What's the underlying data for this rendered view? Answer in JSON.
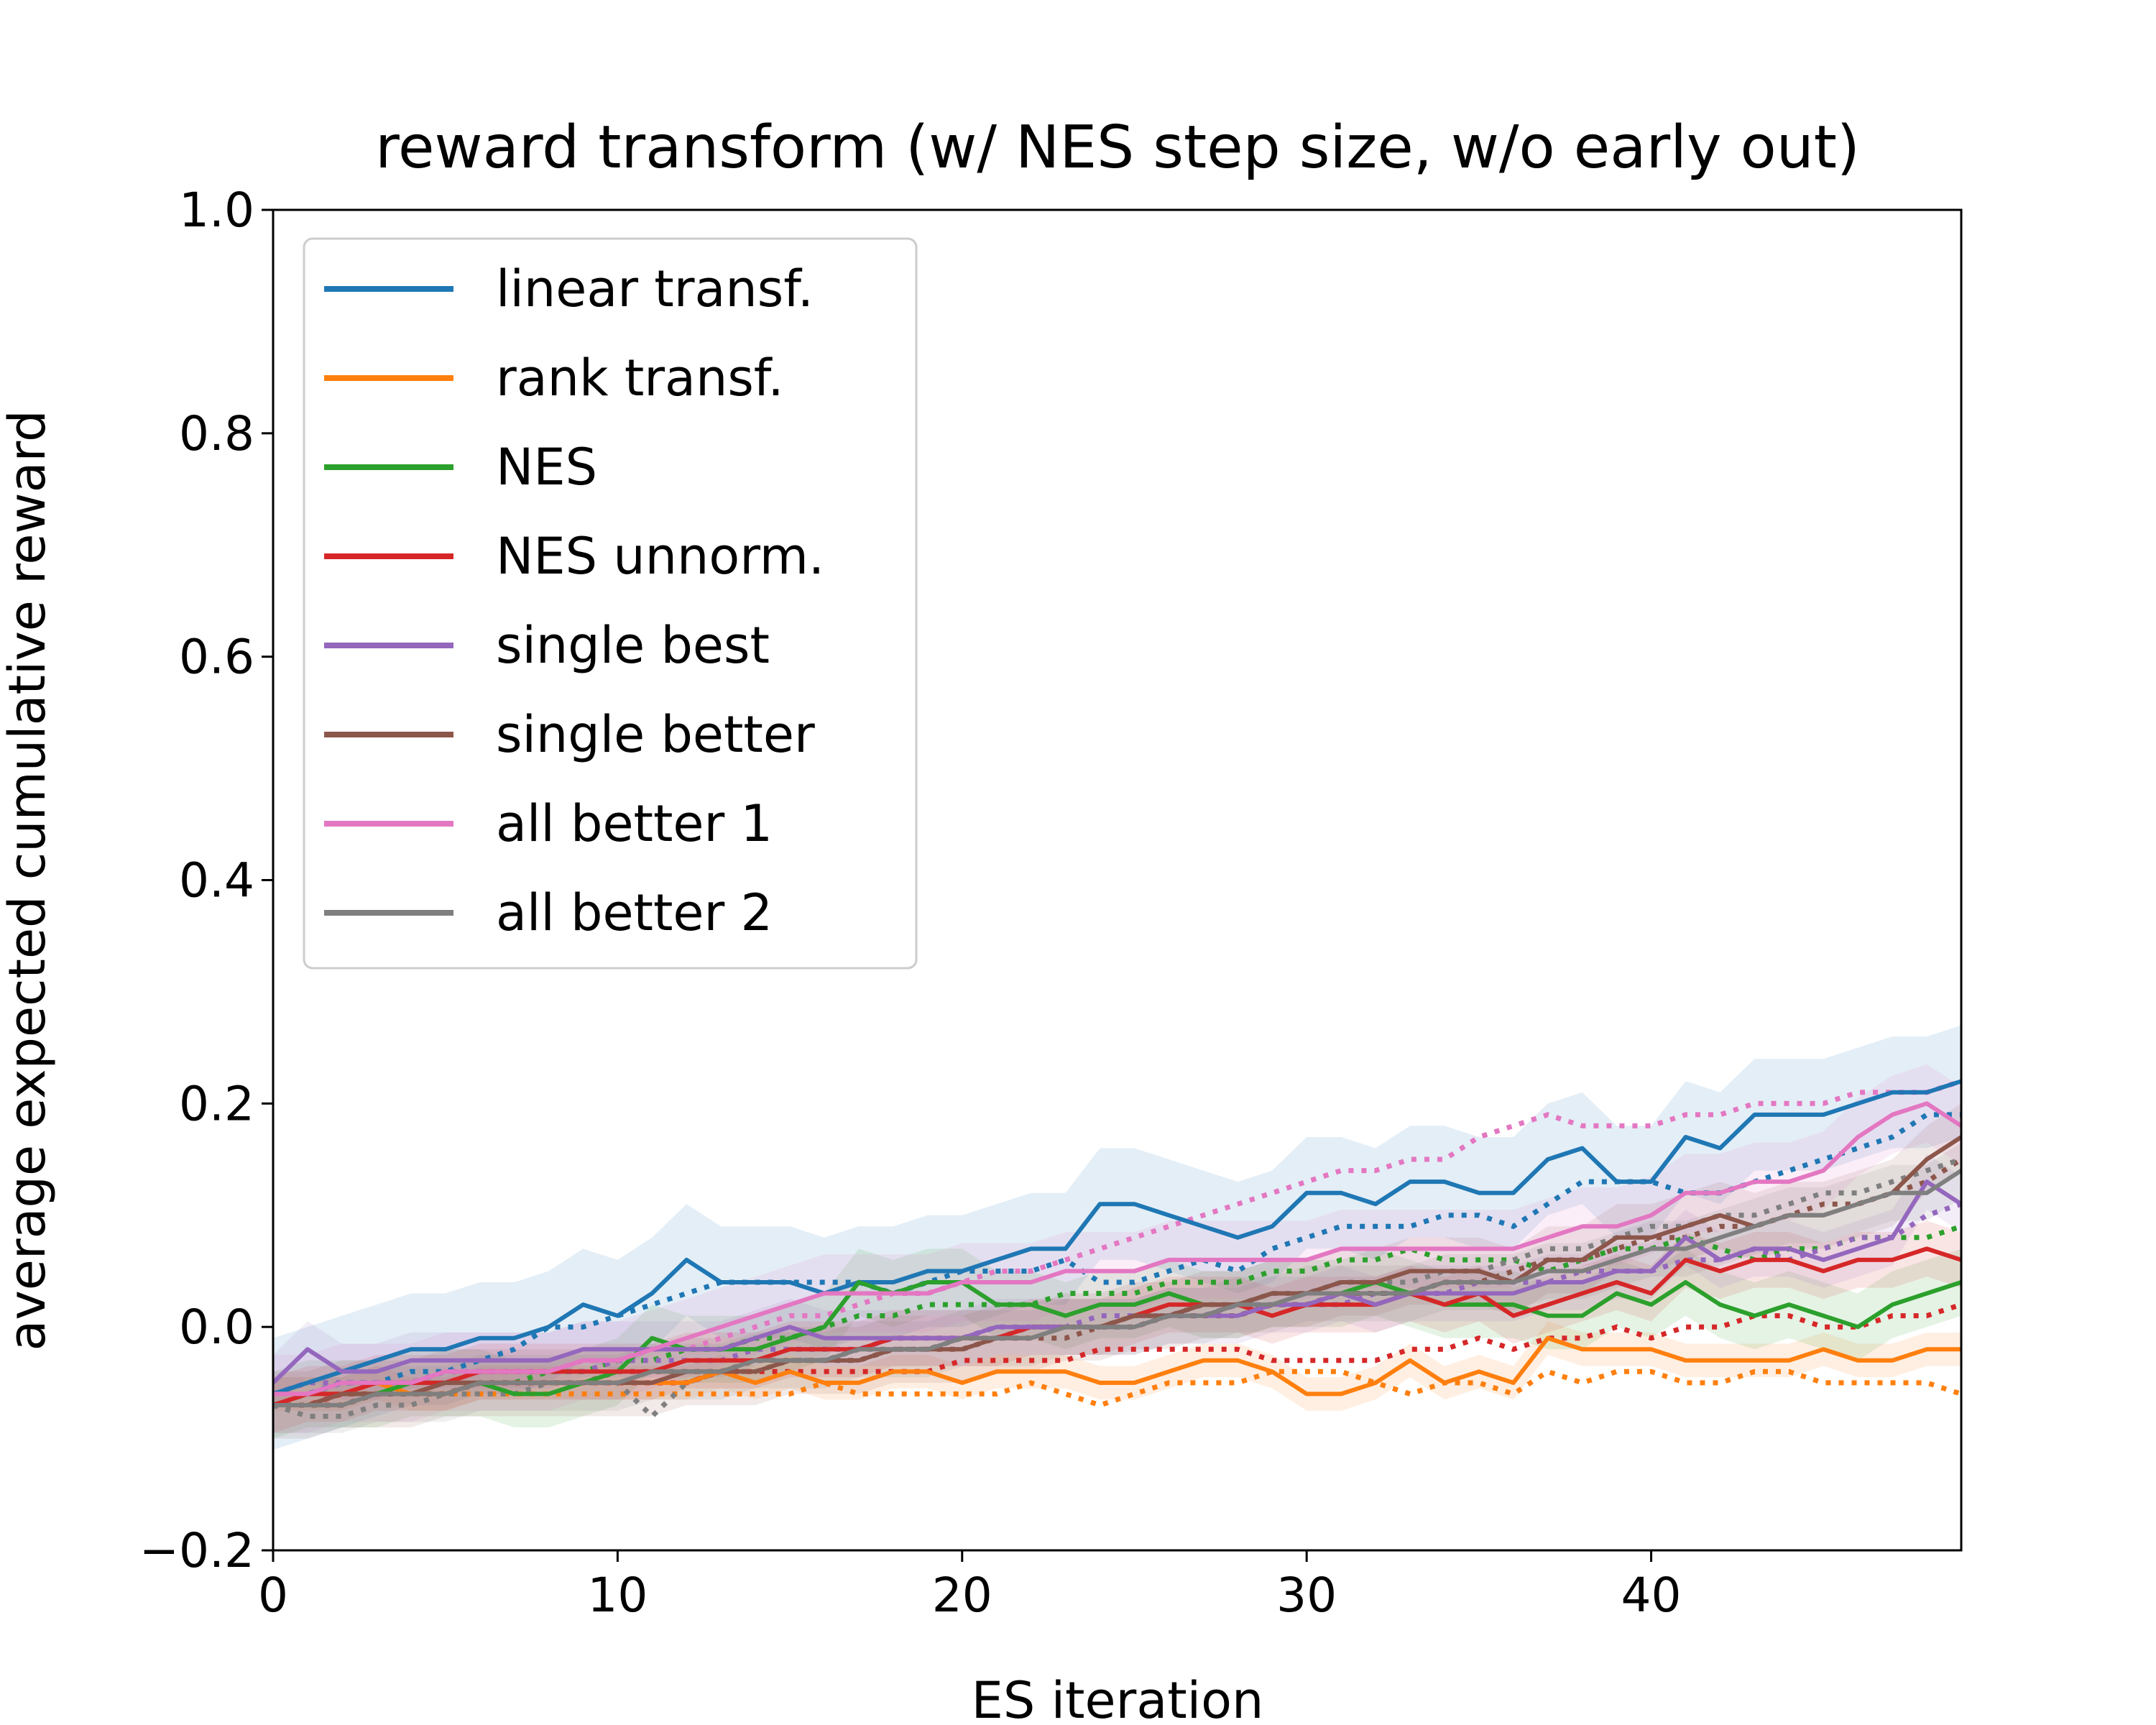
{
  "chart_data": {
    "type": "line",
    "title": "reward transform (w/ NES step size, w/o early out)",
    "xlabel": "ES iteration",
    "ylabel": "average expected cumulative reward",
    "xlim": [
      0,
      49
    ],
    "ylim": [
      -0.2,
      1.0
    ],
    "xticks": [
      0,
      10,
      20,
      30,
      40
    ],
    "xtick_labels": [
      "0",
      "10",
      "20",
      "30",
      "40"
    ],
    "yticks": [
      -0.2,
      0.0,
      0.2,
      0.4,
      0.6,
      0.8,
      1.0
    ],
    "ytick_labels": [
      "−0.2",
      "0.0",
      "0.2",
      "0.4",
      "0.6",
      "0.8",
      "1.0"
    ],
    "grid": false,
    "legend_position": "upper-left",
    "x": [
      0,
      1,
      2,
      3,
      4,
      5,
      6,
      7,
      8,
      9,
      10,
      11,
      12,
      13,
      14,
      15,
      16,
      17,
      18,
      19,
      20,
      21,
      22,
      23,
      24,
      25,
      26,
      27,
      28,
      29,
      30,
      31,
      32,
      33,
      34,
      35,
      36,
      37,
      38,
      39,
      40,
      41,
      42,
      43,
      44,
      45,
      46,
      47,
      48,
      49
    ],
    "series": [
      {
        "name": "linear transf.",
        "color": "#1f77b4",
        "values": [
          -0.06,
          -0.05,
          -0.04,
          -0.03,
          -0.02,
          -0.02,
          -0.01,
          -0.01,
          0.0,
          0.02,
          0.01,
          0.03,
          0.06,
          0.04,
          0.04,
          0.04,
          0.03,
          0.04,
          0.04,
          0.05,
          0.05,
          0.06,
          0.07,
          0.07,
          0.11,
          0.11,
          0.1,
          0.09,
          0.08,
          0.09,
          0.12,
          0.12,
          0.11,
          0.13,
          0.13,
          0.12,
          0.12,
          0.15,
          0.16,
          0.13,
          0.13,
          0.17,
          0.16,
          0.19,
          0.19,
          0.19,
          0.2,
          0.21,
          0.21,
          0.22
        ],
        "band": 0.05,
        "dotted": [
          -0.07,
          -0.06,
          -0.05,
          -0.05,
          -0.04,
          -0.04,
          -0.03,
          -0.02,
          0.0,
          0.0,
          0.01,
          0.02,
          0.03,
          0.04,
          0.04,
          0.04,
          0.04,
          0.04,
          0.03,
          0.04,
          0.05,
          0.05,
          0.05,
          0.06,
          0.04,
          0.04,
          0.05,
          0.06,
          0.05,
          0.07,
          0.08,
          0.09,
          0.09,
          0.09,
          0.1,
          0.1,
          0.09,
          0.11,
          0.13,
          0.13,
          0.13,
          0.12,
          0.12,
          0.13,
          0.14,
          0.15,
          0.16,
          0.17,
          0.19,
          0.19
        ]
      },
      {
        "name": "rank transf.",
        "color": "#ff7f0e",
        "values": [
          -0.06,
          -0.06,
          -0.06,
          -0.05,
          -0.06,
          -0.06,
          -0.05,
          -0.05,
          -0.05,
          -0.05,
          -0.05,
          -0.05,
          -0.05,
          -0.04,
          -0.05,
          -0.04,
          -0.05,
          -0.05,
          -0.04,
          -0.04,
          -0.05,
          -0.04,
          -0.04,
          -0.04,
          -0.05,
          -0.05,
          -0.04,
          -0.03,
          -0.03,
          -0.04,
          -0.06,
          -0.06,
          -0.05,
          -0.03,
          -0.05,
          -0.04,
          -0.05,
          -0.01,
          -0.02,
          -0.02,
          -0.02,
          -0.03,
          -0.03,
          -0.03,
          -0.03,
          -0.02,
          -0.03,
          -0.03,
          -0.02,
          -0.02
        ],
        "band": 0.015,
        "dotted": [
          -0.07,
          -0.07,
          -0.06,
          -0.06,
          -0.06,
          -0.06,
          -0.06,
          -0.06,
          -0.06,
          -0.06,
          -0.06,
          -0.06,
          -0.06,
          -0.06,
          -0.06,
          -0.06,
          -0.05,
          -0.06,
          -0.06,
          -0.06,
          -0.06,
          -0.06,
          -0.05,
          -0.06,
          -0.07,
          -0.06,
          -0.05,
          -0.05,
          -0.05,
          -0.04,
          -0.04,
          -0.04,
          -0.05,
          -0.06,
          -0.05,
          -0.05,
          -0.06,
          -0.04,
          -0.05,
          -0.04,
          -0.04,
          -0.05,
          -0.05,
          -0.04,
          -0.04,
          -0.05,
          -0.05,
          -0.05,
          -0.05,
          -0.06
        ]
      },
      {
        "name": "NES",
        "color": "#2ca02c",
        "values": [
          -0.07,
          -0.06,
          -0.06,
          -0.06,
          -0.05,
          -0.05,
          -0.05,
          -0.06,
          -0.06,
          -0.05,
          -0.04,
          -0.01,
          -0.02,
          -0.02,
          -0.02,
          -0.01,
          0.0,
          0.04,
          0.03,
          0.04,
          0.04,
          0.02,
          0.02,
          0.01,
          0.02,
          0.02,
          0.03,
          0.02,
          0.02,
          0.03,
          0.03,
          0.03,
          0.04,
          0.03,
          0.02,
          0.02,
          0.02,
          0.01,
          0.01,
          0.03,
          0.02,
          0.04,
          0.02,
          0.01,
          0.02,
          0.01,
          0.0,
          0.02,
          0.03,
          0.04
        ],
        "band": 0.03,
        "dotted": [
          -0.07,
          -0.06,
          -0.06,
          -0.06,
          -0.06,
          -0.06,
          -0.05,
          -0.05,
          -0.04,
          -0.04,
          -0.03,
          -0.03,
          -0.02,
          -0.02,
          -0.01,
          -0.01,
          0.0,
          0.01,
          0.01,
          0.02,
          0.02,
          0.02,
          0.02,
          0.03,
          0.03,
          0.03,
          0.04,
          0.04,
          0.04,
          0.05,
          0.05,
          0.06,
          0.06,
          0.07,
          0.06,
          0.06,
          0.06,
          0.05,
          0.06,
          0.07,
          0.07,
          0.08,
          0.07,
          0.06,
          0.07,
          0.07,
          0.08,
          0.08,
          0.08,
          0.09
        ]
      },
      {
        "name": "NES unnorm.",
        "color": "#d62728",
        "values": [
          -0.07,
          -0.06,
          -0.06,
          -0.05,
          -0.05,
          -0.05,
          -0.04,
          -0.04,
          -0.04,
          -0.04,
          -0.04,
          -0.04,
          -0.03,
          -0.03,
          -0.03,
          -0.02,
          -0.02,
          -0.02,
          -0.01,
          -0.01,
          -0.01,
          -0.01,
          0.0,
          0.0,
          0.0,
          0.01,
          0.02,
          0.02,
          0.02,
          0.01,
          0.02,
          0.02,
          0.02,
          0.03,
          0.02,
          0.03,
          0.01,
          0.02,
          0.03,
          0.04,
          0.03,
          0.06,
          0.05,
          0.06,
          0.06,
          0.05,
          0.06,
          0.06,
          0.07,
          0.06
        ],
        "band": 0.025,
        "dotted": [
          -0.07,
          -0.07,
          -0.06,
          -0.06,
          -0.06,
          -0.06,
          -0.05,
          -0.05,
          -0.05,
          -0.05,
          -0.05,
          -0.05,
          -0.05,
          -0.04,
          -0.04,
          -0.04,
          -0.04,
          -0.04,
          -0.04,
          -0.04,
          -0.03,
          -0.03,
          -0.03,
          -0.03,
          -0.02,
          -0.02,
          -0.02,
          -0.02,
          -0.02,
          -0.03,
          -0.03,
          -0.03,
          -0.03,
          -0.02,
          -0.02,
          -0.01,
          -0.02,
          -0.01,
          -0.01,
          0.0,
          -0.01,
          0.0,
          0.0,
          0.01,
          0.01,
          0.0,
          0.0,
          0.01,
          0.01,
          0.02
        ]
      },
      {
        "name": "single best",
        "color": "#9467bd",
        "values": [
          -0.05,
          -0.02,
          -0.04,
          -0.04,
          -0.03,
          -0.03,
          -0.03,
          -0.03,
          -0.03,
          -0.02,
          -0.02,
          -0.02,
          -0.02,
          -0.02,
          -0.01,
          0.0,
          -0.01,
          -0.01,
          -0.01,
          -0.01,
          -0.01,
          0.0,
          0.0,
          0.0,
          0.0,
          0.0,
          0.01,
          0.01,
          0.01,
          0.02,
          0.02,
          0.03,
          0.02,
          0.03,
          0.03,
          0.03,
          0.03,
          0.04,
          0.04,
          0.05,
          0.05,
          0.08,
          0.06,
          0.07,
          0.07,
          0.06,
          0.07,
          0.08,
          0.13,
          0.11
        ],
        "band": 0.025,
        "dotted": [
          -0.06,
          -0.05,
          -0.05,
          -0.05,
          -0.05,
          -0.04,
          -0.04,
          -0.04,
          -0.04,
          -0.04,
          -0.03,
          -0.03,
          -0.03,
          -0.03,
          -0.02,
          -0.02,
          -0.02,
          -0.02,
          -0.01,
          -0.01,
          -0.01,
          0.0,
          0.0,
          0.0,
          0.01,
          0.01,
          0.01,
          0.01,
          0.02,
          0.02,
          0.02,
          0.02,
          0.03,
          0.03,
          0.03,
          0.04,
          0.04,
          0.04,
          0.05,
          0.05,
          0.05,
          0.06,
          0.06,
          0.07,
          0.06,
          0.07,
          0.08,
          0.08,
          0.1,
          0.11
        ]
      },
      {
        "name": "single better",
        "color": "#8c564b",
        "values": [
          -0.07,
          -0.07,
          -0.06,
          -0.06,
          -0.06,
          -0.05,
          -0.05,
          -0.05,
          -0.05,
          -0.05,
          -0.05,
          -0.05,
          -0.04,
          -0.04,
          -0.04,
          -0.03,
          -0.03,
          -0.03,
          -0.02,
          -0.02,
          -0.02,
          -0.01,
          -0.01,
          0.0,
          0.0,
          0.01,
          0.01,
          0.02,
          0.02,
          0.03,
          0.03,
          0.04,
          0.04,
          0.05,
          0.05,
          0.05,
          0.04,
          0.06,
          0.06,
          0.08,
          0.08,
          0.09,
          0.1,
          0.09,
          0.1,
          0.1,
          0.11,
          0.12,
          0.15,
          0.17
        ],
        "band": 0.03,
        "dotted": [
          -0.07,
          -0.07,
          -0.07,
          -0.06,
          -0.06,
          -0.06,
          -0.05,
          -0.05,
          -0.05,
          -0.05,
          -0.04,
          -0.04,
          -0.04,
          -0.04,
          -0.03,
          -0.03,
          -0.03,
          -0.03,
          -0.02,
          -0.02,
          -0.02,
          -0.01,
          -0.01,
          -0.01,
          0.0,
          0.0,
          0.01,
          0.01,
          0.01,
          0.02,
          0.02,
          0.03,
          0.03,
          0.03,
          0.04,
          0.04,
          0.05,
          0.06,
          0.06,
          0.07,
          0.08,
          0.08,
          0.09,
          0.09,
          0.1,
          0.11,
          0.11,
          0.12,
          0.13,
          0.15
        ]
      },
      {
        "name": "all better 1",
        "color": "#e377c2",
        "values": [
          -0.06,
          -0.06,
          -0.05,
          -0.05,
          -0.05,
          -0.04,
          -0.04,
          -0.04,
          -0.04,
          -0.03,
          -0.03,
          -0.02,
          -0.01,
          0.0,
          0.01,
          0.02,
          0.03,
          0.03,
          0.03,
          0.03,
          0.04,
          0.04,
          0.04,
          0.05,
          0.05,
          0.05,
          0.06,
          0.06,
          0.06,
          0.06,
          0.06,
          0.07,
          0.07,
          0.07,
          0.07,
          0.07,
          0.07,
          0.08,
          0.09,
          0.09,
          0.1,
          0.12,
          0.12,
          0.13,
          0.13,
          0.14,
          0.17,
          0.19,
          0.2,
          0.18
        ],
        "band": 0.035,
        "dotted": [
          -0.07,
          -0.06,
          -0.06,
          -0.05,
          -0.05,
          -0.05,
          -0.04,
          -0.04,
          -0.04,
          -0.03,
          -0.03,
          -0.02,
          -0.02,
          -0.01,
          0.0,
          0.01,
          0.01,
          0.02,
          0.03,
          0.03,
          0.04,
          0.05,
          0.05,
          0.06,
          0.07,
          0.08,
          0.09,
          0.1,
          0.11,
          0.12,
          0.13,
          0.14,
          0.14,
          0.15,
          0.15,
          0.17,
          0.18,
          0.19,
          0.18,
          0.18,
          0.18,
          0.19,
          0.19,
          0.2,
          0.2,
          0.2,
          0.21,
          0.21,
          0.21,
          0.22
        ]
      },
      {
        "name": "all better 2",
        "color": "#7f7f7f",
        "values": [
          -0.07,
          -0.07,
          -0.07,
          -0.06,
          -0.06,
          -0.06,
          -0.05,
          -0.05,
          -0.05,
          -0.05,
          -0.05,
          -0.04,
          -0.04,
          -0.04,
          -0.03,
          -0.03,
          -0.03,
          -0.02,
          -0.02,
          -0.02,
          -0.01,
          -0.01,
          -0.01,
          0.0,
          0.0,
          0.0,
          0.01,
          0.01,
          0.02,
          0.02,
          0.03,
          0.03,
          0.03,
          0.03,
          0.04,
          0.04,
          0.04,
          0.05,
          0.05,
          0.06,
          0.07,
          0.07,
          0.08,
          0.09,
          0.1,
          0.1,
          0.11,
          0.12,
          0.12,
          0.14
        ],
        "band": 0.025,
        "dotted": [
          -0.07,
          -0.08,
          -0.08,
          -0.07,
          -0.07,
          -0.06,
          -0.06,
          -0.06,
          -0.05,
          -0.05,
          -0.05,
          -0.08,
          -0.05,
          -0.04,
          -0.04,
          -0.03,
          -0.03,
          -0.02,
          -0.02,
          -0.02,
          -0.01,
          -0.01,
          0.0,
          0.0,
          0.0,
          0.01,
          0.01,
          0.02,
          0.02,
          0.03,
          0.03,
          0.04,
          0.04,
          0.04,
          0.05,
          0.05,
          0.06,
          0.07,
          0.07,
          0.08,
          0.09,
          0.09,
          0.1,
          0.1,
          0.11,
          0.12,
          0.12,
          0.13,
          0.14,
          0.15
        ]
      }
    ]
  }
}
